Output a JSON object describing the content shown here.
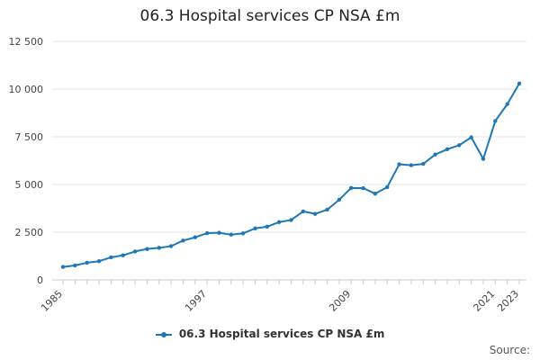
{
  "chart_data": {
    "type": "line",
    "title": "06.3 Hospital services CP NSA £m",
    "xlabel": "",
    "ylabel": "",
    "x": [
      1985,
      1986,
      1987,
      1988,
      1989,
      1990,
      1991,
      1992,
      1993,
      1994,
      1995,
      1996,
      1997,
      1998,
      1999,
      2000,
      2001,
      2002,
      2003,
      2004,
      2005,
      2006,
      2007,
      2008,
      2009,
      2010,
      2011,
      2012,
      2013,
      2014,
      2015,
      2016,
      2017,
      2018,
      2019,
      2020,
      2021,
      2022,
      2023
    ],
    "series": [
      {
        "name": "06.3 Hospital services CP NSA £m",
        "values": [
          680,
          760,
          900,
          980,
          1180,
          1290,
          1490,
          1620,
          1680,
          1770,
          2060,
          2230,
          2450,
          2470,
          2370,
          2440,
          2700,
          2790,
          3030,
          3140,
          3590,
          3460,
          3680,
          4200,
          4820,
          4810,
          4520,
          4860,
          6060,
          6010,
          6080,
          6570,
          6850,
          7060,
          7470,
          6340,
          8330,
          9210,
          10290
        ]
      }
    ],
    "ylim": [
      0,
      12500
    ],
    "y_ticks": [
      0,
      2500,
      5000,
      7500,
      10000,
      12500
    ],
    "y_tick_labels": [
      "0",
      "2 500",
      "5 000",
      "7 500",
      "10 000",
      "12 500"
    ],
    "x_tick_labels": [
      "1985",
      "1997",
      "2009",
      "2021",
      "2023"
    ],
    "grid": true,
    "legend_position": "bottom-center",
    "line_color": "#1f77b4",
    "source_label": "Source:"
  }
}
